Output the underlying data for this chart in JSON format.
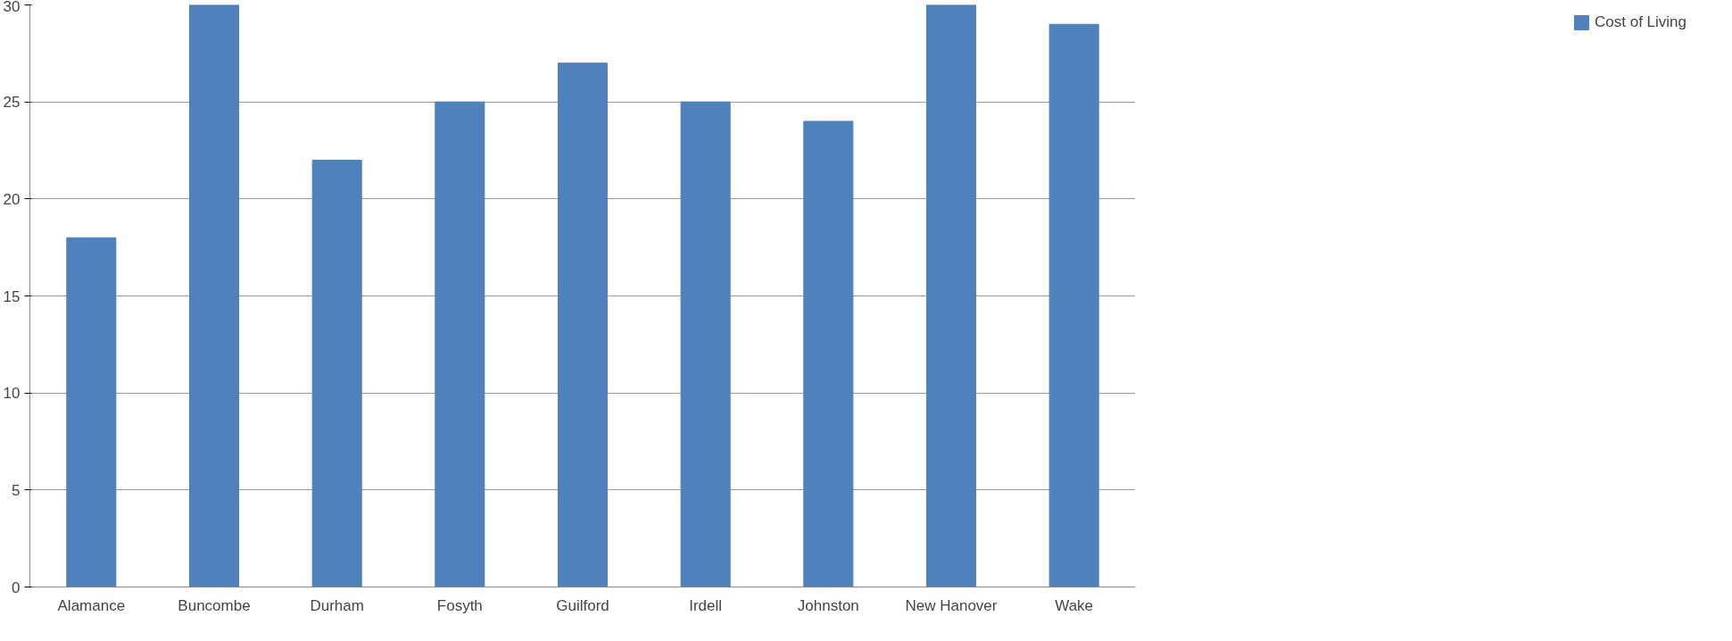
{
  "chart_data": {
    "type": "bar",
    "categories": [
      "Alamance",
      "Buncombe",
      "Durham",
      "Fosyth",
      "Guilford",
      "Irdell",
      "Johnston",
      "New Hanover",
      "Wake"
    ],
    "series": [
      {
        "name": "Cost of Living",
        "color": "#4f81bd",
        "values": [
          18,
          30,
          22,
          25,
          27,
          25,
          24,
          30,
          29
        ]
      }
    ],
    "ylim": [
      0,
      30
    ],
    "yticks": [
      0,
      5,
      10,
      15,
      20,
      25,
      30
    ],
    "grid": "y",
    "legend": "right"
  }
}
